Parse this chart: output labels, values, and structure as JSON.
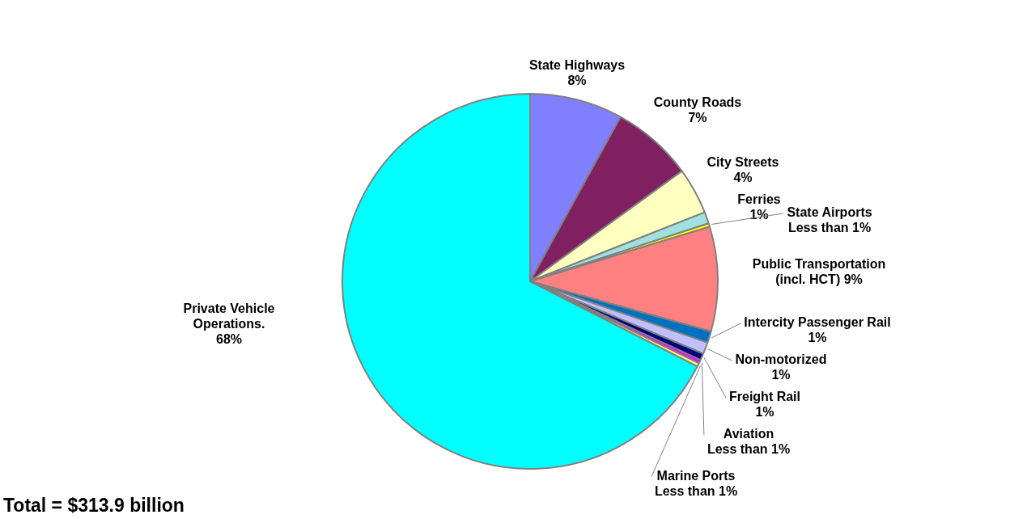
{
  "chart_data": {
    "type": "pie",
    "categories": [
      "State Highways",
      "County Roads",
      "City Streets",
      "Ferries",
      "State Airports",
      "Public Transportation (incl. HCT)",
      "Intercity Passenger Rail",
      "Non-motorized",
      "Freight Rail",
      "Aviation",
      "Marine Ports",
      "Private Vehicle Operations."
    ],
    "values": [
      8,
      7,
      4,
      1,
      0.3,
      9,
      1,
      1,
      0.6,
      0.3,
      0.3,
      67.5
    ],
    "value_labels": [
      "8%",
      "7%",
      "4%",
      "1%",
      "Less than 1%",
      "9%",
      "1%",
      "1%",
      "1%",
      "Less than 1%",
      "Less than 1%",
      "68%"
    ],
    "colors": [
      "#8080ff",
      "#802060",
      "#ffffc0",
      "#a0e0e0",
      "#ffff00",
      "#ff8080",
      "#0070c0",
      "#c0c0ff",
      "#000080",
      "#ff00ff",
      "#ffff80",
      "#00ffff"
    ],
    "legend": false,
    "annotations": [
      "Total = $313.9 billion"
    ]
  }
}
